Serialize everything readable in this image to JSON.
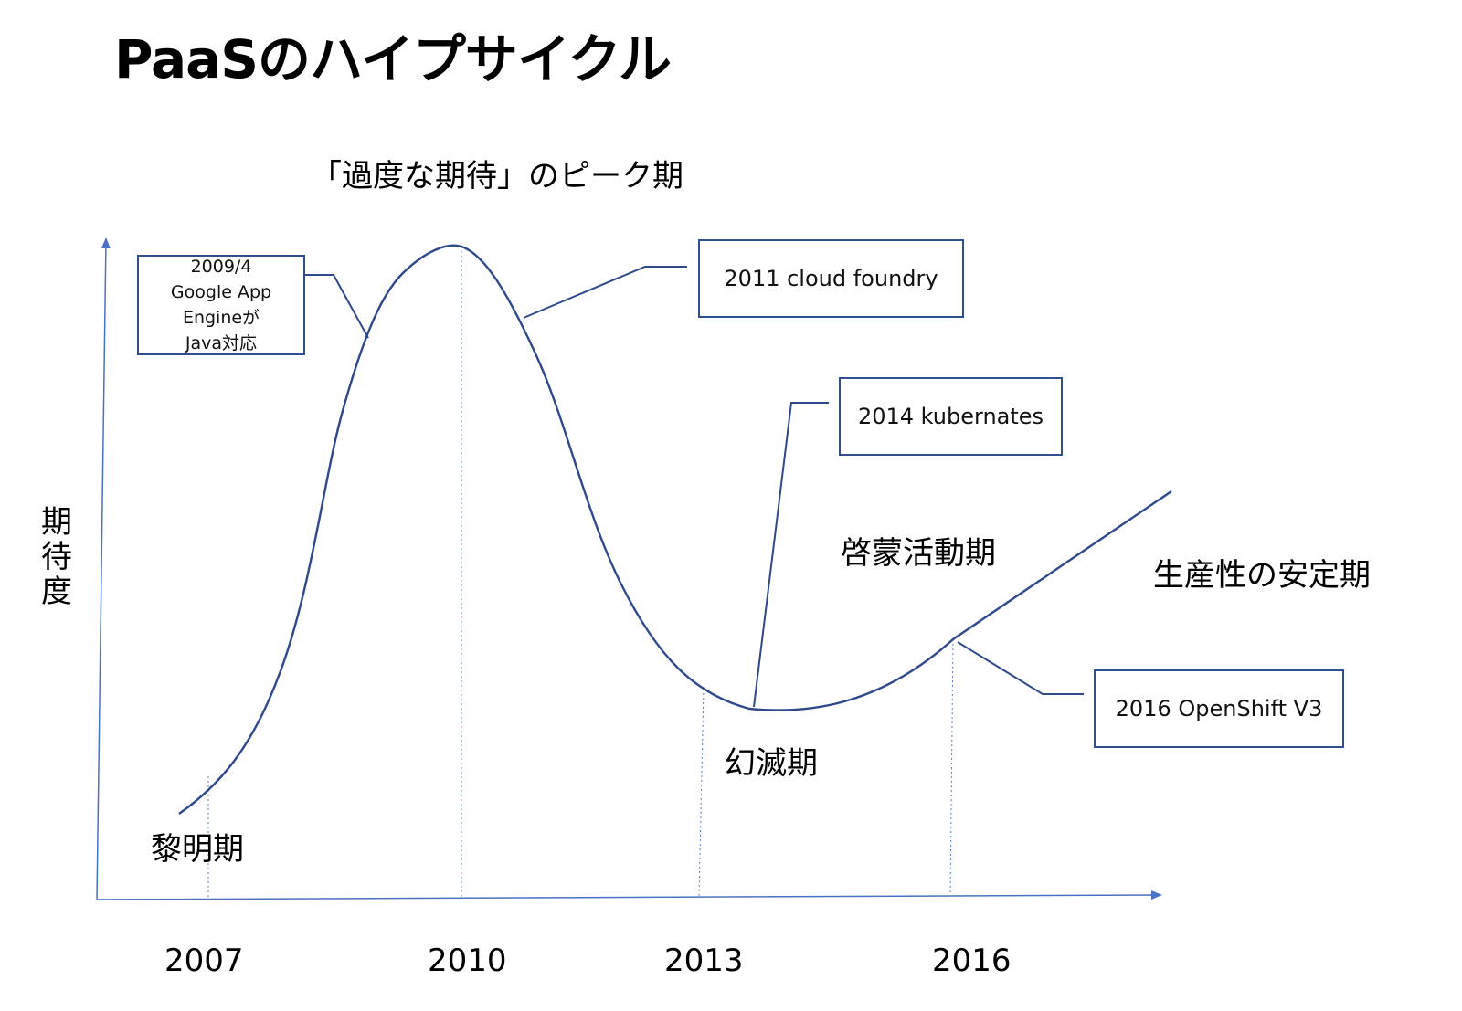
{
  "title": "PaaSのハイプサイクル",
  "y_axis_label": "期待度",
  "phases": {
    "peak": "「過度な期待」のピーク期",
    "dawn": "黎明期",
    "trough": "幻滅期",
    "enlightenment": "啓蒙活動期",
    "plateau": "生産性の安定期"
  },
  "years": [
    "2007",
    "2010",
    "2013",
    "2016"
  ],
  "callouts": {
    "gae": [
      "2009/4",
      "Google App",
      "Engineが",
      "Java対応"
    ],
    "cloudfoundry": "2011 cloud foundry",
    "kubernetes": "2014 kubernates",
    "openshift": "2016 OpenShift V3"
  },
  "colors": {
    "curve": "#2e4a8c",
    "axis": "#4a72c4",
    "box": "#2f4f8f"
  }
}
